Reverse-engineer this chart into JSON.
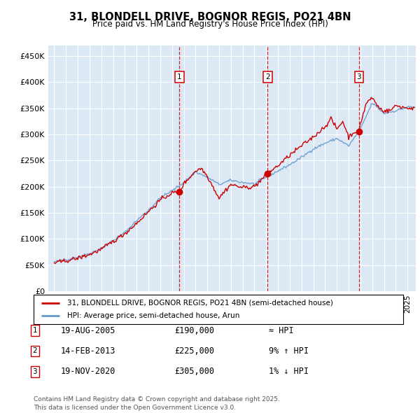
{
  "title": "31, BLONDELL DRIVE, BOGNOR REGIS, PO21 4BN",
  "subtitle": "Price paid vs. HM Land Registry's House Price Index (HPI)",
  "ylim": [
    0,
    470000
  ],
  "yticks": [
    0,
    50000,
    100000,
    150000,
    200000,
    250000,
    300000,
    350000,
    400000,
    450000
  ],
  "ytick_labels": [
    "£0",
    "£50K",
    "£100K",
    "£150K",
    "£200K",
    "£250K",
    "£300K",
    "£350K",
    "£400K",
    "£450K"
  ],
  "xlim_start": 1994.5,
  "xlim_end": 2025.7,
  "background_color": "#dce9f5",
  "grid_color": "#ffffff",
  "legend_entries": [
    "31, BLONDELL DRIVE, BOGNOR REGIS, PO21 4BN (semi-detached house)",
    "HPI: Average price, semi-detached house, Arun"
  ],
  "legend_colors": [
    "#cc0000",
    "#6699cc"
  ],
  "transaction_markers": [
    {
      "num": 1,
      "date": "19-AUG-2005",
      "price": 190000,
      "x": 2005.63,
      "relation": "≈ HPI"
    },
    {
      "num": 2,
      "date": "14-FEB-2013",
      "price": 225000,
      "x": 2013.12,
      "relation": "9% ↑ HPI"
    },
    {
      "num": 3,
      "date": "19-NOV-2020",
      "price": 305000,
      "x": 2020.88,
      "relation": "1% ↓ HPI"
    }
  ],
  "footnote": "Contains HM Land Registry data © Crown copyright and database right 2025.\nThis data is licensed under the Open Government Licence v3.0.",
  "hpi_color": "#6699cc",
  "price_color": "#cc0000",
  "marker_box_color": "#cc0000",
  "hpi_keypoints_x": [
    1995,
    1996,
    1997,
    1998,
    1999,
    2000,
    2001,
    2002,
    2003,
    2004,
    2005,
    2006,
    2007,
    2008,
    2009,
    2010,
    2011,
    2012,
    2013,
    2014,
    2015,
    2016,
    2017,
    2018,
    2019,
    2020,
    2021,
    2022,
    2023,
    2024,
    2025
  ],
  "hpi_keypoints_y": [
    56000,
    60000,
    65000,
    72000,
    82000,
    97000,
    112000,
    135000,
    155000,
    178000,
    192000,
    208000,
    228000,
    218000,
    204000,
    212000,
    208000,
    205000,
    218000,
    230000,
    242000,
    256000,
    272000,
    283000,
    292000,
    278000,
    310000,
    360000,
    340000,
    345000,
    352000
  ],
  "price_keypoints_x": [
    1995,
    1996,
    1997,
    1998,
    1999,
    2000,
    2001,
    2002,
    2003,
    2004,
    2005,
    2005.63,
    2006,
    2007,
    2007.5,
    2008,
    2009,
    2009.5,
    2010,
    2011,
    2012,
    2013.12,
    2014,
    2015,
    2016,
    2017,
    2018,
    2018.5,
    2019,
    2019.5,
    2020,
    2020.5,
    2020.88,
    2021,
    2021.5,
    2022,
    2022.3,
    2022.6,
    2023,
    2023.5,
    2024,
    2025
  ],
  "price_keypoints_y": [
    54000,
    58000,
    63000,
    70000,
    80000,
    95000,
    110000,
    130000,
    152000,
    174000,
    188000,
    190000,
    205000,
    230000,
    235000,
    220000,
    178000,
    192000,
    204000,
    198000,
    200000,
    225000,
    240000,
    260000,
    278000,
    295000,
    315000,
    330000,
    310000,
    325000,
    295000,
    305000,
    305000,
    320000,
    360000,
    370000,
    360000,
    350000,
    345000,
    345000,
    355000,
    350000
  ]
}
